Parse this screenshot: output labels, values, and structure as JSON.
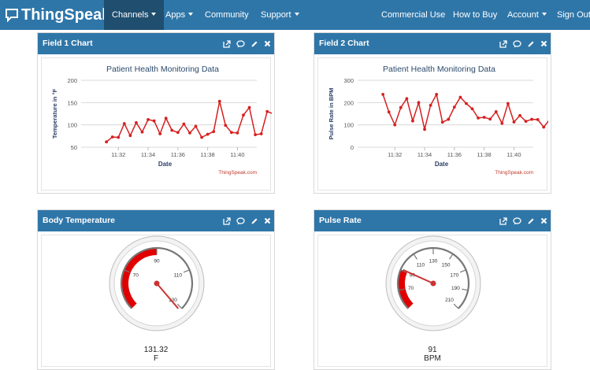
{
  "brand": {
    "name": "ThingSpeak",
    "tm": "™"
  },
  "nav": {
    "left": [
      {
        "label": "Channels",
        "active": true,
        "dropdown": true
      },
      {
        "label": "Apps",
        "active": false,
        "dropdown": true
      },
      {
        "label": "Community",
        "active": false,
        "dropdown": false
      },
      {
        "label": "Support",
        "active": false,
        "dropdown": true
      }
    ],
    "right": [
      {
        "label": "Commercial Use",
        "dropdown": false
      },
      {
        "label": "How to Buy",
        "dropdown": false
      },
      {
        "label": "Account",
        "dropdown": true
      },
      {
        "label": "Sign Out",
        "dropdown": false
      }
    ]
  },
  "panels": {
    "field1": {
      "title": "Field 1 Chart"
    },
    "field2": {
      "title": "Field 2 Chart"
    },
    "temp": {
      "title": "Body Temperature"
    },
    "pulse": {
      "title": "Pulse Rate"
    }
  },
  "colors": {
    "navbar": "#2f76a8",
    "active_nav": "#1f4e6e",
    "series": "#d62020",
    "title_text": "#2b4a6b"
  },
  "chart_data": [
    {
      "type": "line",
      "title": "Patient Health Monitoring Data",
      "xlabel": "Date",
      "ylabel": "Temperature in °F",
      "ylim": [
        50,
        200
      ],
      "yticks": [
        "200",
        "150",
        "100",
        "50"
      ],
      "xticks": [
        "11:32",
        "11:34",
        "11:36",
        "11:38",
        "11:40"
      ],
      "credit": "ThingSpeak.com",
      "grid": true,
      "series": [
        {
          "x": [
            "11:31.2",
            "11:31.6",
            "11:32.0",
            "11:32.4",
            "11:32.8",
            "11:33.2",
            "11:33.6",
            "11:34.0",
            "11:34.4",
            "11:34.8",
            "11:35.2",
            "11:35.6",
            "11:36.0",
            "11:36.4",
            "11:36.8",
            "11:37.2",
            "11:37.6",
            "11:38.0",
            "11:38.4",
            "11:38.8",
            "11:39.2",
            "11:39.6",
            "11:40.0",
            "11:40.4",
            "11:40.8",
            "11:41.2",
            "11:41.6",
            "11:42.0",
            "11:42.4",
            "11:42.8",
            "11:43.2"
          ],
          "values": [
            62,
            73,
            72,
            103,
            76,
            105,
            84,
            112,
            109,
            80,
            115,
            88,
            83,
            102,
            82,
            97,
            72,
            79,
            85,
            153,
            99,
            83,
            82,
            122,
            139,
            78,
            80,
            130,
            125,
            87,
            89
          ]
        }
      ]
    },
    {
      "type": "line",
      "title": "Patient Health Monitoring Data",
      "xlabel": "Date",
      "ylabel": "Pulse Rate in BPM",
      "ylim": [
        0,
        300
      ],
      "yticks": [
        "300",
        "200",
        "100",
        "0"
      ],
      "xticks": [
        "11:32",
        "11:34",
        "11:36",
        "11:38",
        "11:40"
      ],
      "credit": "ThingSpeak.com",
      "grid": true,
      "series": [
        {
          "x": [
            "11:31.2",
            "11:31.6",
            "11:32.0",
            "11:32.4",
            "11:32.8",
            "11:33.2",
            "11:33.6",
            "11:34.0",
            "11:34.4",
            "11:34.8",
            "11:35.2",
            "11:35.6",
            "11:36.0",
            "11:36.4",
            "11:36.8",
            "11:37.2",
            "11:37.6",
            "11:38.0",
            "11:38.4",
            "11:38.8",
            "11:39.2",
            "11:39.6",
            "11:40.0",
            "11:40.4",
            "11:40.8",
            "11:41.2",
            "11:41.6",
            "11:42.0",
            "11:42.4",
            "11:42.8",
            "11:43.2"
          ],
          "values": [
            237,
            158,
            100,
            178,
            218,
            118,
            200,
            80,
            188,
            237,
            112,
            125,
            180,
            224,
            196,
            172,
            131,
            134,
            126,
            159,
            107,
            196,
            113,
            142,
            116,
            125,
            124,
            90,
            124,
            65,
            157
          ]
        }
      ]
    }
  ],
  "gauges": {
    "temp": {
      "value": "131.32",
      "unit": "F",
      "value_num": 131.32,
      "min": 50,
      "max": 130,
      "ticks": [
        "70",
        "90",
        "110",
        "130"
      ],
      "red_range": [
        50,
        90
      ]
    },
    "pulse": {
      "value": "91",
      "unit": "BPM",
      "value_num": 91,
      "min": 50,
      "max": 210,
      "ticks": [
        "70",
        "90",
        "110",
        "130",
        "150",
        "170",
        "190",
        "210"
      ],
      "red_range": [
        50,
        90
      ]
    }
  }
}
